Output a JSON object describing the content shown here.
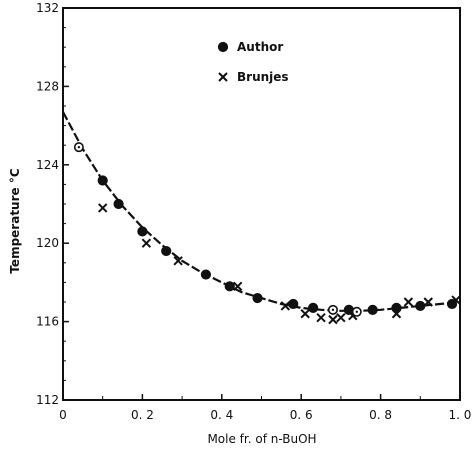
{
  "chart_data": {
    "type": "scatter",
    "title": "",
    "xlabel": "Mole fr.  of  n-BuOH",
    "ylabel": "Temperature  °C",
    "xlim": [
      0,
      1.0
    ],
    "ylim": [
      112,
      132
    ],
    "x_ticks": [
      0,
      0.2,
      0.4,
      0.6,
      0.8,
      1.0
    ],
    "x_tick_labels": [
      "0",
      "0. 2",
      "0. 4",
      "0. 6",
      "0. 8",
      "1. 0"
    ],
    "y_ticks": [
      112,
      116,
      120,
      124,
      128,
      132
    ],
    "y_tick_labels": [
      "112",
      "116",
      "120",
      "124",
      "128",
      "132"
    ],
    "grid": false,
    "legend_position": "top-center",
    "series": [
      {
        "name": "Author",
        "marker": "filled-circle",
        "x": [
          0.1,
          0.14,
          0.2,
          0.26,
          0.36,
          0.42,
          0.49,
          0.58,
          0.63,
          0.72,
          0.78,
          0.84,
          0.9,
          0.98
        ],
        "y": [
          123.2,
          122.0,
          120.6,
          119.6,
          118.4,
          117.8,
          117.2,
          116.9,
          116.7,
          116.6,
          116.6,
          116.7,
          116.8,
          116.9
        ]
      },
      {
        "name": "Brunjes",
        "marker": "x",
        "x": [
          0.1,
          0.21,
          0.29,
          0.44,
          0.56,
          0.61,
          0.65,
          0.68,
          0.7,
          0.73,
          0.84,
          0.87,
          0.92,
          0.99
        ],
        "y": [
          121.8,
          120.0,
          119.1,
          117.8,
          116.8,
          116.4,
          116.2,
          116.1,
          116.2,
          116.3,
          116.4,
          117.0,
          117.0,
          117.1
        ]
      },
      {
        "name": "",
        "marker": "open-circle",
        "x": [
          0.04,
          0.68,
          0.74
        ],
        "y": [
          124.9,
          116.6,
          116.5
        ]
      }
    ],
    "fit_curve": {
      "style": "dashed",
      "x": [
        0.0,
        0.05,
        0.1,
        0.15,
        0.2,
        0.25,
        0.3,
        0.35,
        0.4,
        0.45,
        0.5,
        0.55,
        0.6,
        0.65,
        0.7,
        0.75,
        0.8,
        0.85,
        0.9,
        0.95,
        1.0
      ],
      "y": [
        126.7,
        124.8,
        123.2,
        121.9,
        120.8,
        119.9,
        119.1,
        118.5,
        118.0,
        117.5,
        117.2,
        116.9,
        116.7,
        116.6,
        116.55,
        116.55,
        116.6,
        116.7,
        116.8,
        116.9,
        117.0
      ]
    },
    "legend": [
      {
        "label": "Author",
        "marker": "filled-circle"
      },
      {
        "label": "Brunjes",
        "marker": "x"
      }
    ]
  }
}
